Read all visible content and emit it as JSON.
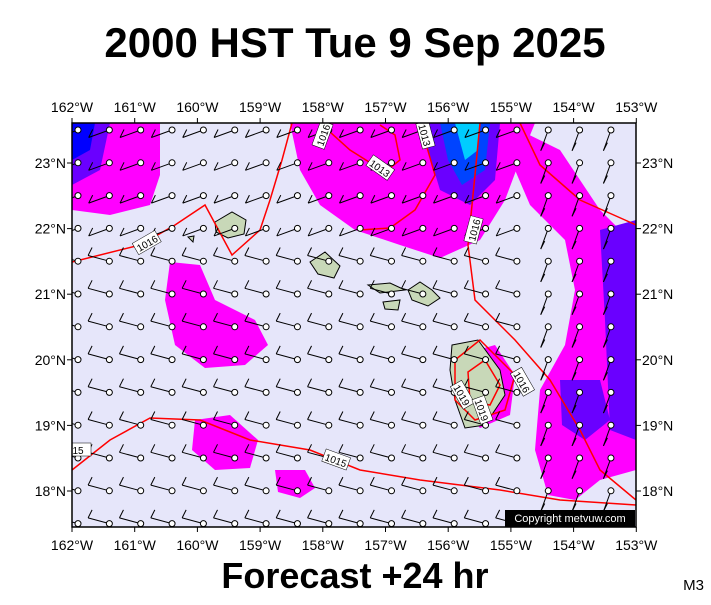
{
  "title": "2000 HST Tue 9 Sep 2025",
  "footer": "Forecast +24 hr",
  "panel_code": "M3",
  "credit": "Copyright metvuw.com",
  "lon_ticks": [
    "162°W",
    "161°W",
    "160°W",
    "159°W",
    "158°W",
    "157°W",
    "156°W",
    "155°W",
    "154°W",
    "153°W"
  ],
  "lat_ticks": [
    "23°N",
    "22°N",
    "21°N",
    "20°N",
    "19°N",
    "18°N"
  ],
  "isobar_labels": [
    "1016",
    "1013",
    "1016",
    "1016",
    "1019",
    "1019",
    "1016",
    "1015",
    "15",
    "1013"
  ]
}
